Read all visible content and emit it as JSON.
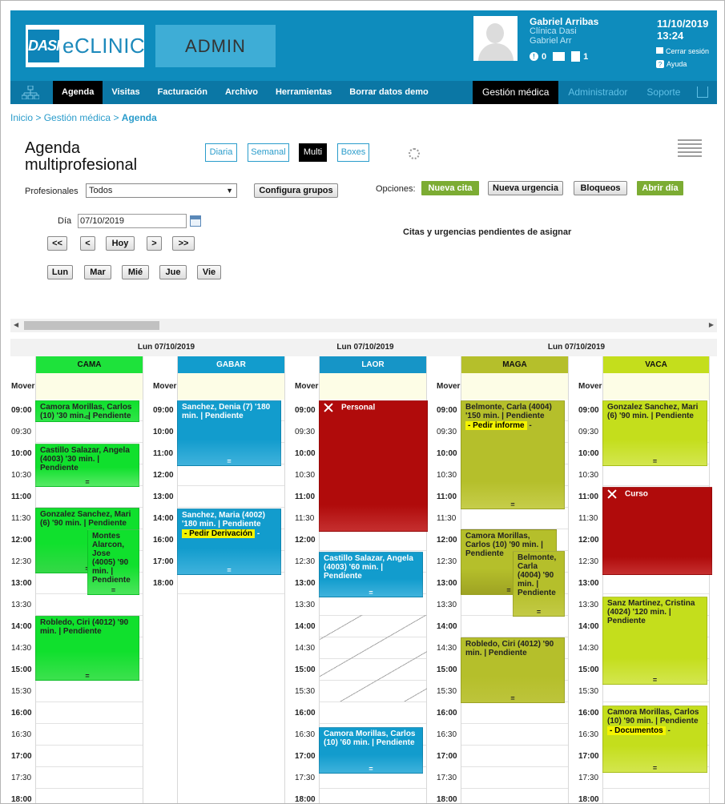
{
  "header": {
    "logo_mark": "DASI",
    "logo_text": "eCLINIC",
    "admin_label": "ADMIN",
    "user_name": "Gabriel Arribas",
    "clinic": "Clínica Dasi",
    "user_short": "Gabriel Arr",
    "alerts_count": "0",
    "docs_count": "1",
    "date": "11/10/2019",
    "time": "13:24",
    "logout_label": "Cerrar sesión",
    "help_label": "Ayuda"
  },
  "nav": {
    "items": [
      "Agenda",
      "Visitas",
      "Facturación",
      "Archivo",
      "Herramientas",
      "Borrar datos demo"
    ],
    "active": "Agenda",
    "right_items": [
      "Gestión médica",
      "Administrador",
      "Soporte"
    ]
  },
  "breadcrumb": {
    "p1": "Inicio",
    "p2": "Gestión médica",
    "current": "Agenda",
    "sep": ">"
  },
  "page_title": "Agenda multiprofesional",
  "views": {
    "diaria": "Diaria",
    "semanal": "Semanal",
    "multi": "Multi",
    "boxes": "Boxes",
    "active": "Multi"
  },
  "filters": {
    "profesionales_label": "Profesionales",
    "profesionales_value": "Todos",
    "configura_label": "Configura grupos",
    "opciones_label": "Opciones:",
    "nueva_cita": "Nueva cita",
    "nueva_urgencia": "Nueva urgencia",
    "bloqueos": "Bloqueos",
    "abrir_dia": "Abrir día",
    "dia_label": "Día",
    "dia_value": "07/10/2019",
    "pending_title": "Citas y urgencias pendientes de asignar"
  },
  "navbtns": {
    "prev_week": "<<",
    "prev": "<",
    "today": "Hoy",
    "next": ">",
    "next_week": ">>"
  },
  "weekdays": [
    "Lun",
    "Mar",
    "Mié",
    "Jue",
    "Vie"
  ],
  "schedule": {
    "day_header": "Lun 07/10/2019",
    "mover_label": "Mover",
    "times": [
      "09:00",
      "09:30",
      "10:00",
      "10:30",
      "11:00",
      "11:30",
      "12:00",
      "12:30",
      "13:00",
      "13:30",
      "14:00",
      "14:30",
      "15:00",
      "15:30",
      "16:00",
      "16:30",
      "17:00",
      "17:30",
      "18:00"
    ],
    "short_times": [
      "09:00",
      "10:00",
      "11:00",
      "12:00",
      "13:00",
      "14:00",
      "16:00",
      "17:00",
      "18:00"
    ],
    "end_marker": "=",
    "professionals": [
      {
        "name": "CAMA",
        "color": "#1ee23b"
      },
      {
        "name": "GABAR",
        "color": "#129ccd"
      },
      {
        "name": "LAOR",
        "color": "#1695c7"
      },
      {
        "name": "MAGA",
        "color": "#b5bf2b"
      },
      {
        "name": "VACA",
        "color": "#c4de1c"
      }
    ],
    "events": {
      "cama_1": "Camora Morillas, Carlos (10) '30 min. | Pendiente",
      "cama_2": "Castillo Salazar, Angela (4003) '30 min. | Pendiente",
      "cama_3": "Gonzalez Sanchez, Mari (6) '90 min. | Pendiente",
      "cama_4": "Montes Alarcon, Jose (4005) '90 min. | Pendiente",
      "cama_5": "Robledo, Ciri (4012) '90 min. | Pendiente",
      "gabar_1": "Sanchez, Denia (7) '180 min. | Pendiente",
      "gabar_2": "Sanchez, Maria (4002) '180 min. | Pendiente",
      "gabar_2_tag": "- Pedir Derivación",
      "laor_1": "Personal",
      "laor_2": "Castillo Salazar, Angela (4003) '60 min. | Pendiente",
      "laor_3": "Camora Morillas, Carlos (10) '60 min. | Pendiente",
      "maga_1": "Belmonte, Carla (4004) '150 min. | Pendiente",
      "maga_1_tag": "- Pedir informe",
      "maga_2": "Camora Morillas, Carlos (10) '90 min. | Pendiente",
      "maga_3": "Belmonte, Carla (4004) '90 min. | Pendiente",
      "maga_4": "Robledo, Ciri (4012) '90 min. | Pendiente",
      "vaca_1": "Gonzalez Sanchez, Mari (6) '90 min. | Pendiente",
      "vaca_2": "Curso",
      "vaca_3": "Sanz Martinez, Cristina (4024) '120 min. | Pendiente",
      "vaca_4": "Camora Morillas, Carlos (10) '90 min. | Pendiente",
      "vaca_4_tag": "- Documentos",
      "dash": "-"
    }
  },
  "colors": {
    "brand": "#0e8cbd",
    "block_red": "#b00b0b",
    "tag_yellow": "#f4f400",
    "button_green": "#7cac33"
  }
}
